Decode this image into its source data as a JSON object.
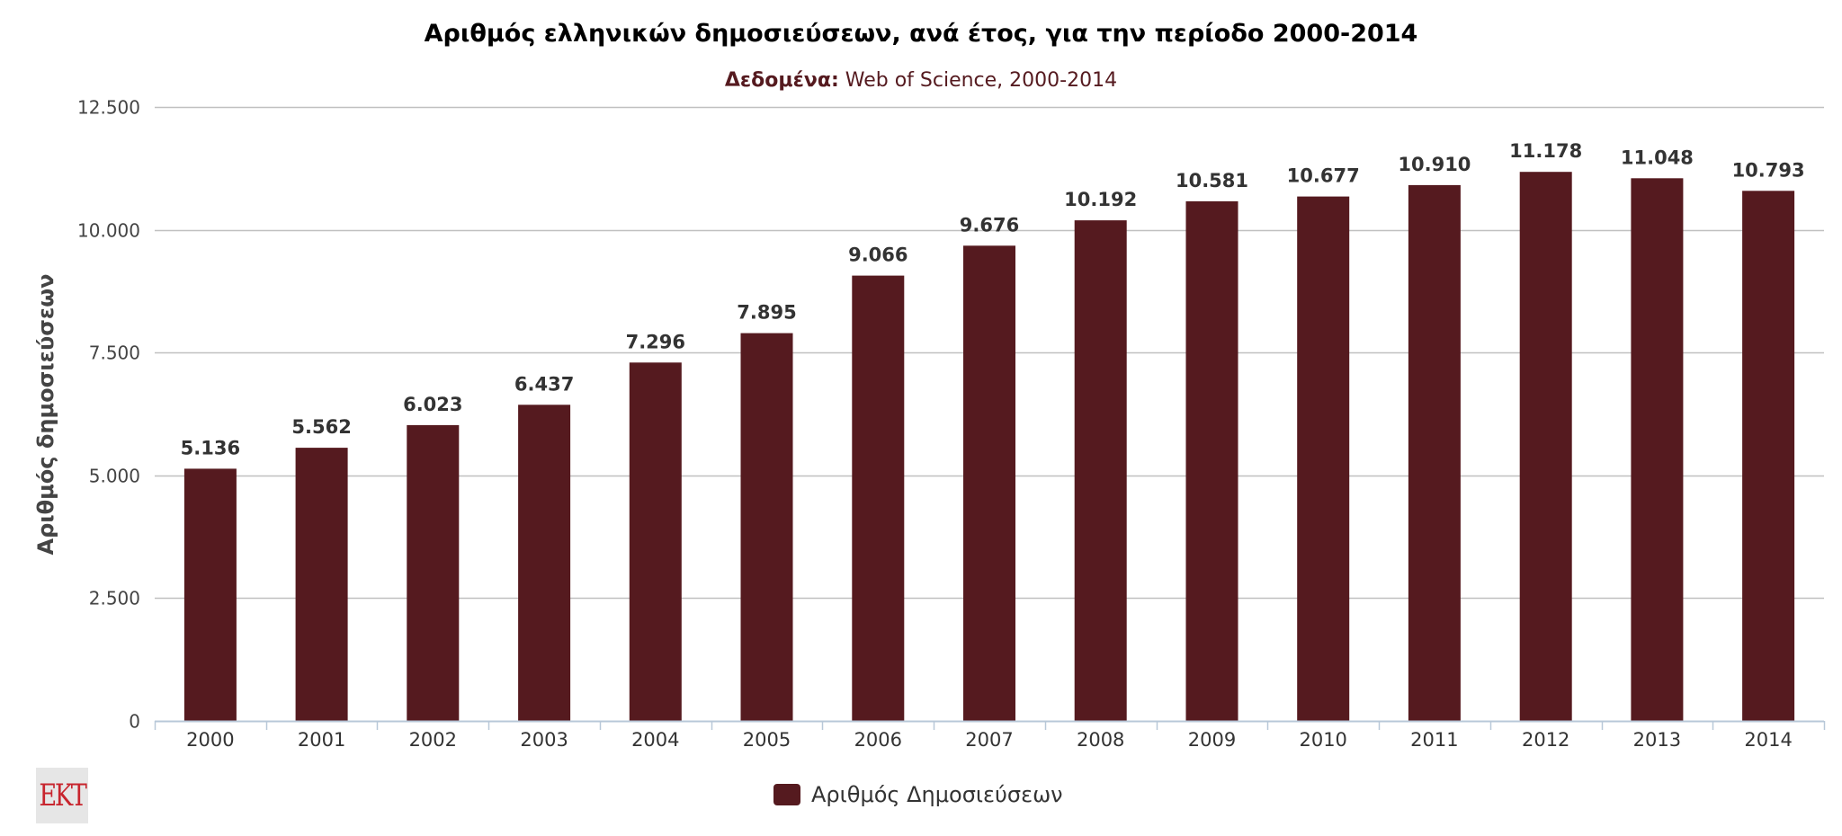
{
  "chart_data": {
    "type": "bar",
    "title": "Αριθμός ελληνικών δημοσιεύσεων, ανά έτος, για την περίοδο 2000-2014",
    "subtitle_label": "Δεδομένα:",
    "subtitle_text": " Web of Science, 2000-2014",
    "xlabel": "",
    "ylabel": "Αριθμός δημοσιεύσεων",
    "categories": [
      "2000",
      "2001",
      "2002",
      "2003",
      "2004",
      "2005",
      "2006",
      "2007",
      "2008",
      "2009",
      "2010",
      "2011",
      "2012",
      "2013",
      "2014"
    ],
    "series": [
      {
        "name": "Αριθμός Δημοσιεύσεων",
        "values": [
          5136,
          5562,
          6023,
          6437,
          7296,
          7895,
          9066,
          9676,
          10192,
          10581,
          10677,
          10910,
          11178,
          11048,
          10793
        ],
        "value_labels": [
          "5.136",
          "5.562",
          "6.023",
          "6.437",
          "7.296",
          "7.895",
          "9.066",
          "9.676",
          "10.192",
          "10.581",
          "10.677",
          "10.910",
          "11.178",
          "11.048",
          "10.793"
        ],
        "color": "#551a1f"
      }
    ],
    "ylim": [
      0,
      12500
    ],
    "yticks": [
      0,
      2500,
      5000,
      7500,
      10000,
      12500
    ],
    "ytick_labels": [
      "0",
      "2.500",
      "5.000",
      "7.500",
      "10.000",
      "12.500"
    ],
    "grid": true,
    "legend": "bottom-center",
    "data_labels": true
  },
  "logo": {
    "text": "EKT",
    "color": "#c8252e"
  }
}
